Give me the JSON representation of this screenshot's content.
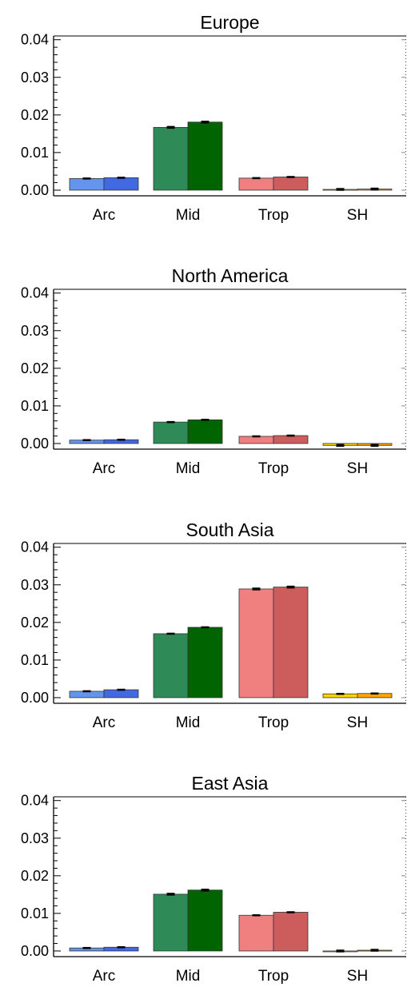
{
  "chart_data": [
    {
      "type": "bar",
      "title": "Europe",
      "categories": [
        "Arc",
        "Mid",
        "Trop",
        "SH"
      ],
      "series": [
        {
          "values": [
            0.0031,
            0.0167,
            0.0032,
            0.0002
          ],
          "errors": [
            0.0001,
            0.0002,
            0.0001,
            0.0002
          ]
        },
        {
          "values": [
            0.0033,
            0.0181,
            0.0035,
            0.0003
          ],
          "errors": [
            0.0001,
            0.0002,
            0.0001,
            0.0002
          ]
        }
      ],
      "ylim": [
        -0.0015,
        0.041
      ],
      "yticks": [
        "0.00",
        "0.01",
        "0.02",
        "0.03",
        "0.04"
      ]
    },
    {
      "type": "bar",
      "title": "North America",
      "categories": [
        "Arc",
        "Mid",
        "Trop",
        "SH"
      ],
      "series": [
        {
          "values": [
            0.0009,
            0.0057,
            0.0019,
            -0.0005
          ],
          "errors": [
            0.0001,
            0.0001,
            0.0001,
            0.0002
          ]
        },
        {
          "values": [
            0.001,
            0.0063,
            0.0021,
            -0.0005
          ],
          "errors": [
            0.0001,
            0.0001,
            0.0001,
            0.0002
          ]
        }
      ],
      "ylim": [
        -0.0015,
        0.041
      ],
      "yticks": [
        "0.00",
        "0.01",
        "0.02",
        "0.03",
        "0.04"
      ]
    },
    {
      "type": "bar",
      "title": "South Asia",
      "categories": [
        "Arc",
        "Mid",
        "Trop",
        "SH"
      ],
      "series": [
        {
          "values": [
            0.0017,
            0.017,
            0.0289,
            0.001
          ],
          "errors": [
            0.0001,
            0.0001,
            0.0002,
            0.0001
          ]
        },
        {
          "values": [
            0.0021,
            0.0187,
            0.0294,
            0.0011
          ],
          "errors": [
            0.0001,
            0.0001,
            0.0002,
            0.0001
          ]
        }
      ],
      "ylim": [
        -0.0015,
        0.041
      ],
      "yticks": [
        "0.00",
        "0.01",
        "0.02",
        "0.03",
        "0.04"
      ]
    },
    {
      "type": "bar",
      "title": "East Asia",
      "categories": [
        "Arc",
        "Mid",
        "Trop",
        "SH"
      ],
      "series": [
        {
          "values": [
            0.0008,
            0.0151,
            0.0095,
            0.0
          ],
          "errors": [
            0.0001,
            0.0002,
            0.0001,
            0.0002
          ]
        },
        {
          "values": [
            0.001,
            0.0162,
            0.0103,
            0.0002
          ],
          "errors": [
            0.0001,
            0.0002,
            0.0001,
            0.0002
          ]
        }
      ],
      "ylim": [
        -0.0015,
        0.041
      ],
      "yticks": [
        "0.00",
        "0.01",
        "0.02",
        "0.03",
        "0.04"
      ]
    }
  ],
  "colors": {
    "Arc": [
      "#6495ed",
      "#4169e1"
    ],
    "Mid": [
      "#2e8b57",
      "#006400"
    ],
    "Trop": [
      "#f08080",
      "#cd5c5c"
    ],
    "SH": [
      "#ffd700",
      "#ffa500"
    ]
  }
}
